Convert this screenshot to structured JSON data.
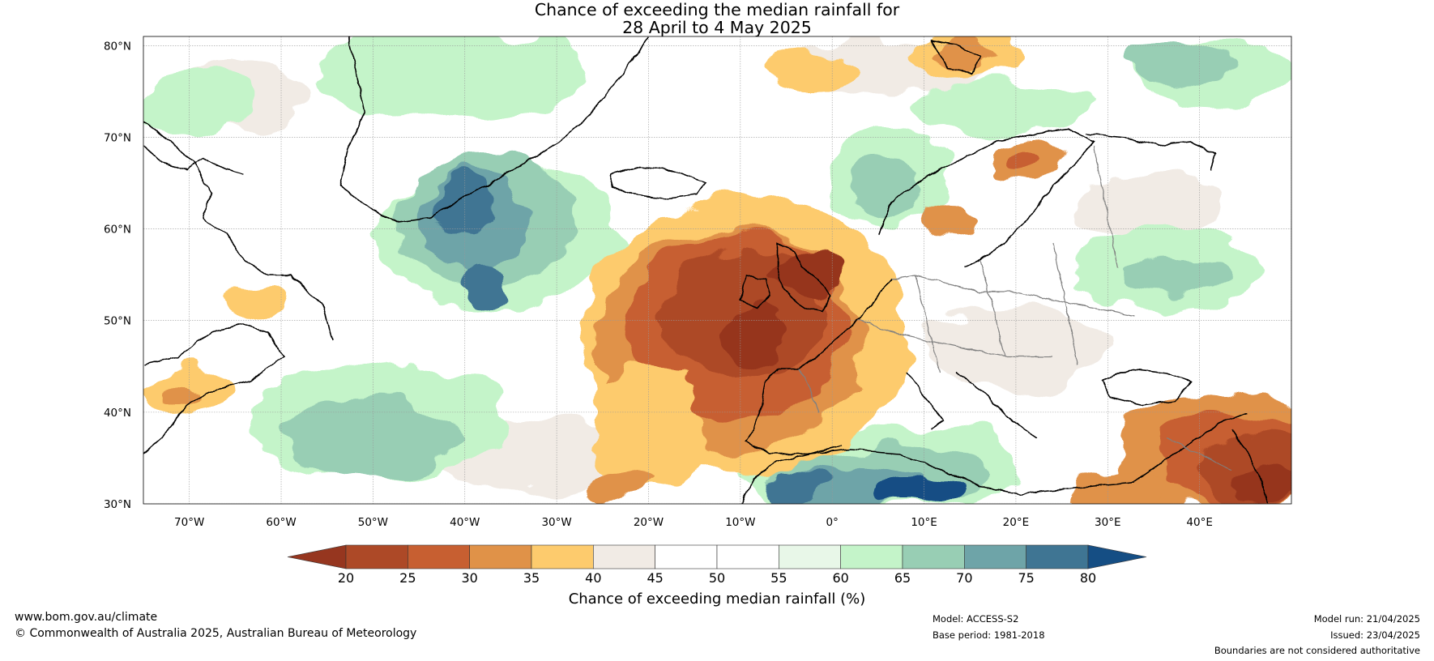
{
  "title": {
    "line1": "Chance of exceeding the median rainfall for",
    "line2": "28 April to 4 May 2025"
  },
  "axes": {
    "lat_ticks": [
      "80°N",
      "70°N",
      "60°N",
      "50°N",
      "40°N",
      "30°N"
    ],
    "lon_ticks": [
      "70°W",
      "60°W",
      "50°W",
      "40°W",
      "30°W",
      "20°W",
      "10°W",
      "0°",
      "10°E",
      "20°E",
      "30°E",
      "40°E"
    ],
    "lat_range": [
      30,
      81
    ],
    "lon_range": [
      -75,
      50
    ]
  },
  "colorbar": {
    "title": "Chance of exceeding median rainfall (%)",
    "tick_labels": [
      "20",
      "25",
      "30",
      "35",
      "40",
      "45",
      "50",
      "55",
      "60",
      "65",
      "70",
      "75",
      "80"
    ],
    "colors": [
      "#96361f",
      "#ad4927",
      "#c75f31",
      "#e09248",
      "#fdcb6d",
      "#f1ebe5",
      "#ffffff",
      "#ffffff",
      "#e8f7e8",
      "#c4f4c9",
      "#98ceb4",
      "#6ea4a8",
      "#3f7593",
      "#154e84"
    ],
    "extend": "both"
  },
  "footer": {
    "website": "www.bom.gov.au/climate",
    "copyright": "© Commonwealth of Australia 2025, Australian Bureau of Meteorology",
    "model": "Model: ACCESS-S2",
    "base_period": "Base period: 1981-2018",
    "model_run": "Model run: 21/04/2025",
    "issued": "Issued: 23/04/2025",
    "disclaimer": "Boundaries are not considered authoritative"
  }
}
